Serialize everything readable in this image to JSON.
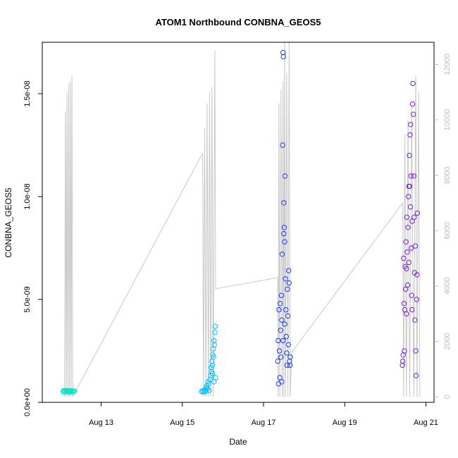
{
  "chart_data": {
    "type": "scatter",
    "title": "ATOM1 Northbound CONBNA_GEOS5",
    "xlabel": "Date",
    "ylabel": "CONBNA_GEOS5",
    "y2label": "",
    "x_range_days": [
      11.55,
      21.2
    ],
    "x_ticks": [
      {
        "day": 13,
        "label": "Aug 13"
      },
      {
        "day": 15,
        "label": "Aug 15"
      },
      {
        "day": 17,
        "label": "Aug 17"
      },
      {
        "day": 19,
        "label": "Aug 19"
      },
      {
        "day": 21,
        "label": "Aug 21"
      }
    ],
    "ylim": [
      0,
      1.75e-08
    ],
    "y_ticks": [
      {
        "value": 0,
        "label": "0.0e+00"
      },
      {
        "value": 5e-09,
        "label": "5.0e-09"
      },
      {
        "value": 1e-08,
        "label": "1.0e-08"
      },
      {
        "value": 1.5e-08,
        "label": "1.5e-08"
      }
    ],
    "y2lim": [
      -200,
      12800
    ],
    "y2_ticks": [
      {
        "value": 0,
        "label": "0"
      },
      {
        "value": 2000,
        "label": "2000"
      },
      {
        "value": 4000,
        "label": "4000"
      },
      {
        "value": 6000,
        "label": "6000"
      },
      {
        "value": 8000,
        "label": "8000"
      },
      {
        "value": 10000,
        "label": "10000"
      },
      {
        "value": 12000,
        "label": "12000"
      }
    ],
    "grid": false,
    "legend": "none",
    "colors": {
      "altitude_line": "#c8c8c8",
      "axis": "#000000",
      "y2_axis": "#bdbdbd",
      "flight1": "#00e6c8",
      "flight2": "#00bfff",
      "flight3": "#1f3cff",
      "flight4": "#7a1fe0"
    },
    "altitude_series": [
      {
        "x": 12.1,
        "y": 0
      },
      {
        "x": 12.12,
        "y": 10300
      },
      {
        "x": 12.14,
        "y": 0
      },
      {
        "x": 12.16,
        "y": 11000
      },
      {
        "x": 12.18,
        "y": 0
      },
      {
        "x": 12.2,
        "y": 11300
      },
      {
        "x": 12.22,
        "y": 0
      },
      {
        "x": 12.24,
        "y": 11400
      },
      {
        "x": 12.26,
        "y": 0
      },
      {
        "x": 12.28,
        "y": 11600
      },
      {
        "x": 12.3,
        "y": 0
      },
      {
        "x": 15.5,
        "y": 8800
      },
      {
        "x": 15.52,
        "y": 0
      },
      {
        "x": 15.55,
        "y": 9700
      },
      {
        "x": 15.58,
        "y": 0
      },
      {
        "x": 15.61,
        "y": 10600
      },
      {
        "x": 15.64,
        "y": 0
      },
      {
        "x": 15.67,
        "y": 11000
      },
      {
        "x": 15.7,
        "y": 0
      },
      {
        "x": 15.73,
        "y": 11200
      },
      {
        "x": 15.76,
        "y": 0
      },
      {
        "x": 15.8,
        "y": 12500
      },
      {
        "x": 15.82,
        "y": 3900
      },
      {
        "x": 17.35,
        "y": 4300
      },
      {
        "x": 17.36,
        "y": 0
      },
      {
        "x": 17.38,
        "y": 10600
      },
      {
        "x": 17.4,
        "y": 0
      },
      {
        "x": 17.43,
        "y": 11100
      },
      {
        "x": 17.46,
        "y": 0
      },
      {
        "x": 17.48,
        "y": 11400
      },
      {
        "x": 17.5,
        "y": 0
      },
      {
        "x": 17.52,
        "y": 12800
      },
      {
        "x": 17.54,
        "y": 0
      },
      {
        "x": 17.57,
        "y": 11700
      },
      {
        "x": 17.6,
        "y": 0
      },
      {
        "x": 17.63,
        "y": 12800
      },
      {
        "x": 17.66,
        "y": 0
      },
      {
        "x": 17.69,
        "y": 1600
      },
      {
        "x": 20.43,
        "y": 7000
      },
      {
        "x": 20.45,
        "y": 0
      },
      {
        "x": 20.48,
        "y": 9500
      },
      {
        "x": 20.52,
        "y": 0
      },
      {
        "x": 20.56,
        "y": 10000
      },
      {
        "x": 20.6,
        "y": 0
      },
      {
        "x": 20.65,
        "y": 10500
      },
      {
        "x": 20.7,
        "y": 0
      },
      {
        "x": 20.75,
        "y": 11600
      },
      {
        "x": 20.78,
        "y": 0
      },
      {
        "x": 20.82,
        "y": 11000
      },
      {
        "x": 20.85,
        "y": 0
      }
    ],
    "series": [
      {
        "color": "#00e6c8",
        "points": [
          {
            "x": 12.06,
            "y": 5.3e-10
          },
          {
            "x": 12.08,
            "y": 5.7e-10
          },
          {
            "x": 12.1,
            "y": 5.5e-10
          },
          {
            "x": 12.12,
            "y": 5e-10
          },
          {
            "x": 12.14,
            "y": 5.8e-10
          },
          {
            "x": 12.16,
            "y": 5.2e-10
          },
          {
            "x": 12.18,
            "y": 5.6e-10
          },
          {
            "x": 12.2,
            "y": 5.4e-10
          },
          {
            "x": 12.22,
            "y": 5e-10
          },
          {
            "x": 12.24,
            "y": 5.7e-10
          },
          {
            "x": 12.26,
            "y": 5.3e-10
          },
          {
            "x": 12.28,
            "y": 5.6e-10
          },
          {
            "x": 12.3,
            "y": 5.1e-10
          },
          {
            "x": 12.32,
            "y": 5.4e-10
          },
          {
            "x": 12.34,
            "y": 5.5e-10
          }
        ]
      },
      {
        "color": "#00bfff",
        "points": [
          {
            "x": 15.47,
            "y": 5.3e-10
          },
          {
            "x": 15.5,
            "y": 5.6e-10
          },
          {
            "x": 15.53,
            "y": 5e-10
          },
          {
            "x": 15.55,
            "y": 6e-10
          },
          {
            "x": 15.57,
            "y": 5.4e-10
          },
          {
            "x": 15.59,
            "y": 7e-10
          },
          {
            "x": 15.6,
            "y": 8e-10
          },
          {
            "x": 15.62,
            "y": 6.5e-10
          },
          {
            "x": 15.63,
            "y": 1e-09
          },
          {
            "x": 15.65,
            "y": 9e-10
          },
          {
            "x": 15.66,
            "y": 5.8e-10
          },
          {
            "x": 15.68,
            "y": 1.1e-09
          },
          {
            "x": 15.7,
            "y": 1.3e-09
          },
          {
            "x": 15.71,
            "y": 1.7e-09
          },
          {
            "x": 15.72,
            "y": 1.5e-09
          },
          {
            "x": 15.73,
            "y": 2e-09
          },
          {
            "x": 15.74,
            "y": 1.8e-09
          },
          {
            "x": 15.75,
            "y": 2.3e-09
          },
          {
            "x": 15.76,
            "y": 2.6e-09
          },
          {
            "x": 15.77,
            "y": 2.2e-09
          },
          {
            "x": 15.78,
            "y": 3e-09
          },
          {
            "x": 15.79,
            "y": 2.8e-09
          },
          {
            "x": 15.8,
            "y": 3.4e-09
          },
          {
            "x": 15.81,
            "y": 3.7e-09
          },
          {
            "x": 15.82,
            "y": 1.2e-09
          },
          {
            "x": 15.78,
            "y": 1e-09
          },
          {
            "x": 15.74,
            "y": 1.4e-09
          }
        ]
      },
      {
        "color": "#1f3cff",
        "points": [
          {
            "x": 17.35,
            "y": 2e-09
          },
          {
            "x": 17.36,
            "y": 3e-09
          },
          {
            "x": 17.37,
            "y": 9e-10
          },
          {
            "x": 17.38,
            "y": 4.5e-09
          },
          {
            "x": 17.39,
            "y": 2.5e-09
          },
          {
            "x": 17.4,
            "y": 1.2e-09
          },
          {
            "x": 17.41,
            "y": 4.8e-09
          },
          {
            "x": 17.42,
            "y": 3.5e-09
          },
          {
            "x": 17.43,
            "y": 2.2e-09
          },
          {
            "x": 17.44,
            "y": 5.2e-09
          },
          {
            "x": 17.45,
            "y": 4e-09
          },
          {
            "x": 17.46,
            "y": 7.2e-09
          },
          {
            "x": 17.47,
            "y": 1.25e-08
          },
          {
            "x": 17.48,
            "y": 1.7e-08
          },
          {
            "x": 17.49,
            "y": 1.68e-08
          },
          {
            "x": 17.5,
            "y": 9.7e-09
          },
          {
            "x": 17.51,
            "y": 8.5e-09
          },
          {
            "x": 17.52,
            "y": 7.8e-09
          },
          {
            "x": 17.53,
            "y": 1.1e-08
          },
          {
            "x": 17.54,
            "y": 6e-09
          },
          {
            "x": 17.55,
            "y": 4.5e-09
          },
          {
            "x": 17.56,
            "y": 3.2e-09
          },
          {
            "x": 17.57,
            "y": 2.4e-09
          },
          {
            "x": 17.58,
            "y": 1.8e-09
          },
          {
            "x": 17.59,
            "y": 5.5e-09
          },
          {
            "x": 17.6,
            "y": 4.2e-09
          },
          {
            "x": 17.61,
            "y": 2.8e-09
          },
          {
            "x": 17.62,
            "y": 6.4e-09
          },
          {
            "x": 17.63,
            "y": 5.8e-09
          },
          {
            "x": 17.64,
            "y": 2e-09
          },
          {
            "x": 17.65,
            "y": 1.8e-09
          },
          {
            "x": 17.66,
            "y": 2.2e-09
          },
          {
            "x": 17.45,
            "y": 1e-09
          },
          {
            "x": 17.5,
            "y": 8.2e-09
          },
          {
            "x": 17.52,
            "y": 3.8e-09
          },
          {
            "x": 17.48,
            "y": 3e-09
          }
        ]
      },
      {
        "color": "#7a1fe0",
        "points": [
          {
            "x": 20.42,
            "y": 1.8e-09
          },
          {
            "x": 20.43,
            "y": 2e-09
          },
          {
            "x": 20.44,
            "y": 2.3e-09
          },
          {
            "x": 20.45,
            "y": 7e-09
          },
          {
            "x": 20.46,
            "y": 4.8e-09
          },
          {
            "x": 20.47,
            "y": 2.5e-09
          },
          {
            "x": 20.48,
            "y": 4.5e-09
          },
          {
            "x": 20.49,
            "y": 6.6e-09
          },
          {
            "x": 20.5,
            "y": 5.5e-09
          },
          {
            "x": 20.51,
            "y": 7.8e-09
          },
          {
            "x": 20.52,
            "y": 6.5e-09
          },
          {
            "x": 20.53,
            "y": 9e-09
          },
          {
            "x": 20.54,
            "y": 7.3e-09
          },
          {
            "x": 20.55,
            "y": 5.7e-09
          },
          {
            "x": 20.56,
            "y": 8.5e-09
          },
          {
            "x": 20.57,
            "y": 1e-08
          },
          {
            "x": 20.58,
            "y": 6.8e-09
          },
          {
            "x": 20.59,
            "y": 1.2e-08
          },
          {
            "x": 20.6,
            "y": 1.05e-08
          },
          {
            "x": 20.61,
            "y": 1.3e-08
          },
          {
            "x": 20.62,
            "y": 9.5e-09
          },
          {
            "x": 20.63,
            "y": 1.1e-08
          },
          {
            "x": 20.64,
            "y": 7.5e-09
          },
          {
            "x": 20.65,
            "y": 5.2e-09
          },
          {
            "x": 20.66,
            "y": 4.5e-09
          },
          {
            "x": 20.67,
            "y": 1.45e-08
          },
          {
            "x": 20.68,
            "y": 1.55e-08
          },
          {
            "x": 20.69,
            "y": 1.4e-08
          },
          {
            "x": 20.7,
            "y": 1.1e-08
          },
          {
            "x": 20.71,
            "y": 9e-09
          },
          {
            "x": 20.72,
            "y": 6.3e-09
          },
          {
            "x": 20.73,
            "y": 4e-09
          },
          {
            "x": 20.74,
            "y": 7.6e-09
          },
          {
            "x": 20.75,
            "y": 2.5e-09
          },
          {
            "x": 20.76,
            "y": 1.3e-09
          },
          {
            "x": 20.77,
            "y": 5e-09
          },
          {
            "x": 20.78,
            "y": 6.2e-09
          },
          {
            "x": 20.79,
            "y": 9.2e-09
          },
          {
            "x": 20.58,
            "y": 1.05e-08
          },
          {
            "x": 20.62,
            "y": 1.35e-08
          },
          {
            "x": 20.66,
            "y": 8.8e-09
          },
          {
            "x": 20.52,
            "y": 4.3e-09
          }
        ]
      }
    ]
  }
}
